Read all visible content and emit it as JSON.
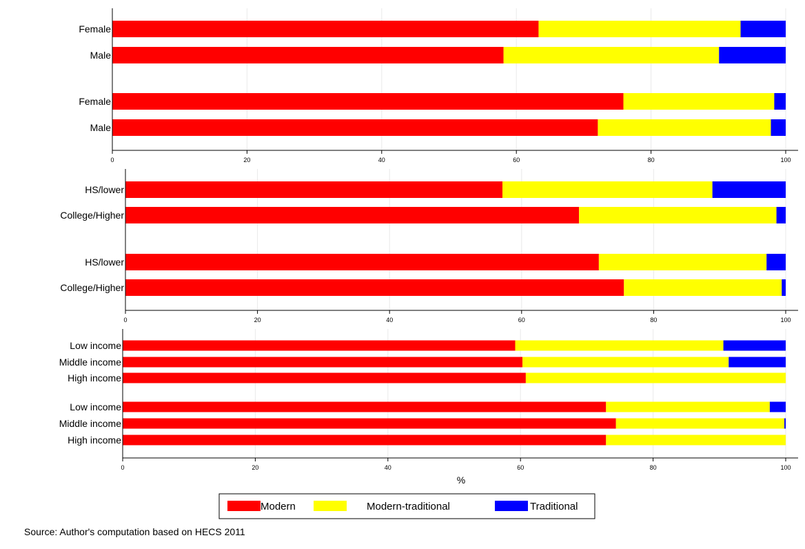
{
  "chart_data": {
    "type": "bar",
    "stacked": true,
    "orientation": "horizontal",
    "xlabel": "%",
    "xlim": [
      0,
      100
    ],
    "xticks": [
      0,
      20,
      40,
      60,
      80,
      100
    ],
    "grid": true,
    "legend_position": "bottom",
    "series": [
      {
        "name": "Modern",
        "color": "#ff0000"
      },
      {
        "name": "Modern-traditional",
        "color": "#ffff00"
      },
      {
        "name": "Traditional",
        "color": "#0000ff"
      }
    ],
    "panels": [
      {
        "groups": [
          {
            "bars": [
              {
                "label": "Female",
                "values": [
                  63.3,
                  30.0,
                  6.7
                ]
              },
              {
                "label": "Male",
                "values": [
                  58.1,
                  32.0,
                  9.9
                ]
              }
            ]
          },
          {
            "bars": [
              {
                "label": "Female",
                "values": [
                  75.9,
                  22.4,
                  1.7
                ]
              },
              {
                "label": "Male",
                "values": [
                  72.1,
                  25.7,
                  2.2
                ]
              }
            ]
          }
        ]
      },
      {
        "groups": [
          {
            "bars": [
              {
                "label": "HS/lower",
                "values": [
                  57.1,
                  31.8,
                  11.1
                ]
              },
              {
                "label": "College/Higher",
                "values": [
                  68.7,
                  29.9,
                  1.4
                ]
              }
            ]
          },
          {
            "bars": [
              {
                "label": "HS/lower",
                "values": [
                  71.7,
                  25.4,
                  2.9
                ]
              },
              {
                "label": "College/Higher",
                "values": [
                  75.5,
                  23.9,
                  0.6
                ]
              }
            ]
          }
        ]
      },
      {
        "groups": [
          {
            "bars": [
              {
                "label": "Low income",
                "values": [
                  59.2,
                  31.4,
                  9.4
                ]
              },
              {
                "label": "Middle income",
                "values": [
                  60.3,
                  31.1,
                  8.6
                ]
              },
              {
                "label": "High income",
                "values": [
                  60.8,
                  39.2,
                  0.0
                ]
              }
            ]
          },
          {
            "bars": [
              {
                "label": "Low income",
                "values": [
                  72.9,
                  24.7,
                  2.4
                ]
              },
              {
                "label": "Middle income",
                "values": [
                  74.4,
                  25.4,
                  0.2
                ]
              },
              {
                "label": "High income",
                "values": [
                  72.9,
                  27.1,
                  0.0
                ]
              }
            ]
          }
        ]
      }
    ]
  },
  "source_note": "Source: Author's computation based on HECS 2011"
}
